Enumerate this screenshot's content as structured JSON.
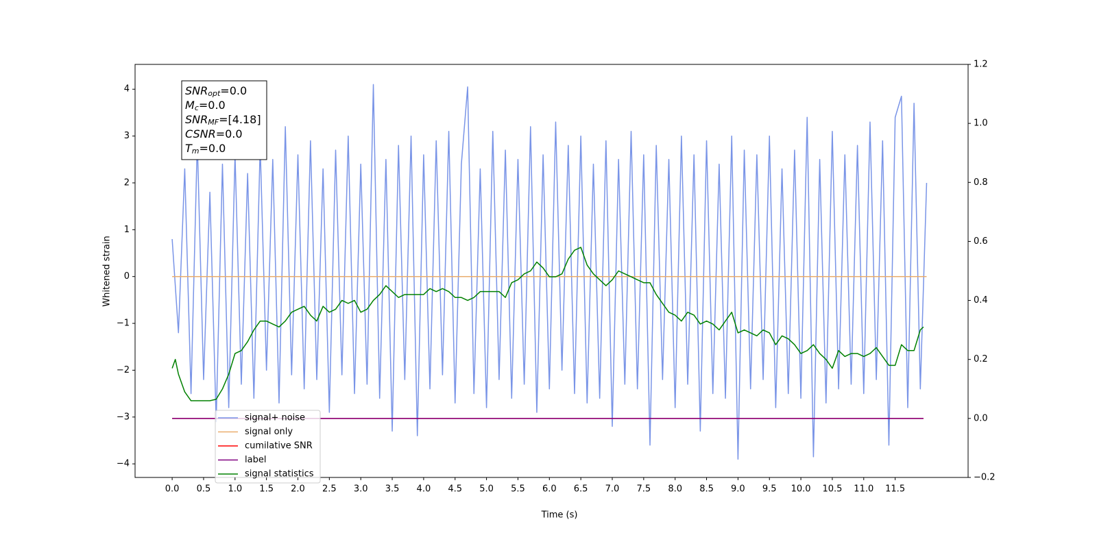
{
  "chart_data": {
    "type": "line",
    "xlabel": "Time (s)",
    "ylabel": "Whitened strain",
    "xlim": [
      -0.59,
      12.66
    ],
    "ylim": [
      -4.29,
      4.53
    ],
    "y2lim": [
      -0.2,
      1.2
    ],
    "xticks": [
      {
        "value": 0,
        "label": "0.0"
      },
      0.5,
      {
        "value": 1,
        "label": "1.0"
      },
      1.5,
      {
        "value": 2,
        "label": "2.0"
      },
      2.5,
      {
        "value": 3,
        "label": "3.0"
      },
      3.5,
      {
        "value": 4,
        "label": "4.0"
      },
      4.5,
      {
        "value": 5,
        "label": "5.0"
      },
      5.5,
      {
        "value": 6,
        "label": "6.0"
      },
      6.5,
      {
        "value": 7,
        "label": "7.0"
      },
      7.5,
      {
        "value": 8,
        "label": "8.0"
      },
      8.5,
      {
        "value": 9,
        "label": "9.0"
      },
      9.5,
      {
        "value": 10,
        "label": "10.0"
      },
      10.5,
      {
        "value": 11,
        "label": "11.0"
      },
      11.5
    ],
    "yticks": [
      {
        "value": -4,
        "label": "−4"
      },
      {
        "value": -3,
        "label": "−3"
      },
      {
        "value": -2,
        "label": "−2"
      },
      {
        "value": -1,
        "label": "−1"
      },
      0,
      1,
      2,
      3,
      4
    ],
    "y2ticks": [
      {
        "value": -0.2,
        "label": "−0.2"
      },
      {
        "value": 0,
        "label": "0.0"
      },
      0.2,
      0.4,
      0.6,
      0.8,
      {
        "value": 1,
        "label": "1.0"
      },
      1.2
    ],
    "grid": false,
    "legend_loc": "lower left",
    "annotation": [
      {
        "base": "SNR",
        "sub": "opt",
        "rest": "=0.0"
      },
      {
        "base": "M",
        "sub": "c",
        "rest": "=0.0"
      },
      {
        "base": "SNR",
        "sub": "MF",
        "rest": "=[4.18]"
      },
      {
        "base": "CSNR",
        "sub": null,
        "rest": "=0.0"
      },
      {
        "base": "T",
        "sub": "m",
        "rest": "=0.0"
      }
    ],
    "series": [
      {
        "name": "signal+ noise",
        "color": "#7994e7",
        "x": [
          0,
          0.1,
          0.2,
          0.3,
          0.4,
          0.5,
          0.6,
          0.7,
          0.8,
          0.9,
          1,
          1.1,
          1.2,
          1.3,
          1.4,
          1.5,
          1.6,
          1.7,
          1.8,
          1.9,
          2,
          2.1,
          2.2,
          2.3,
          2.4,
          2.5,
          2.6,
          2.7,
          2.8,
          2.9,
          3,
          3.1,
          3.2,
          3.3,
          3.4,
          3.5,
          3.6,
          3.7,
          3.8,
          3.9,
          4,
          4.1,
          4.2,
          4.3,
          4.4,
          4.5,
          4.6,
          4.7,
          4.8,
          4.9,
          5,
          5.1,
          5.2,
          5.3,
          5.4,
          5.5,
          5.6,
          5.7,
          5.8,
          5.9,
          6,
          6.1,
          6.2,
          6.3,
          6.4,
          6.5,
          6.6,
          6.7,
          6.8,
          6.9,
          7,
          7.1,
          7.2,
          7.3,
          7.4,
          7.5,
          7.6,
          7.7,
          7.8,
          7.9,
          8,
          8.1,
          8.2,
          8.3,
          8.4,
          8.5,
          8.6,
          8.7,
          8.8,
          8.9,
          9,
          9.1,
          9.2,
          9.3,
          9.4,
          9.5,
          9.6,
          9.7,
          9.8,
          9.9,
          10,
          10.1,
          10.2,
          10.3,
          10.4,
          10.5,
          10.6,
          10.7,
          10.8,
          10.9,
          11,
          11.1,
          11.2,
          11.3,
          11.4,
          11.5,
          11.6,
          11.7,
          11.8,
          11.9,
          12
        ],
        "values": [
          0.8,
          -1.2,
          2.3,
          -2.5,
          2.9,
          -2.2,
          1.8,
          -3.1,
          2.4,
          -2.8,
          2.6,
          -2.3,
          2.2,
          -2.6,
          2.8,
          -2.0,
          2.5,
          -2.7,
          3.2,
          -2.1,
          2.6,
          -2.4,
          2.9,
          -2.2,
          2.3,
          -2.9,
          2.7,
          -2.1,
          3.0,
          -2.5,
          2.4,
          -2.3,
          4.1,
          -2.6,
          2.5,
          -3.3,
          2.8,
          -2.2,
          3.0,
          -3.4,
          2.6,
          -2.4,
          2.9,
          -2.1,
          3.1,
          -2.7,
          2.4,
          4.05,
          -2.5,
          2.3,
          -2.8,
          3.1,
          -2.2,
          2.7,
          -2.6,
          2.5,
          -2.3,
          3.2,
          -2.9,
          2.6,
          -2.4,
          3.3,
          -2.0,
          2.8,
          -2.5,
          3.0,
          -2.7,
          2.4,
          -2.6,
          2.9,
          -3.2,
          2.5,
          -2.3,
          3.1,
          -2.4,
          2.6,
          -3.6,
          2.8,
          -2.2,
          2.5,
          -2.8,
          3.0,
          -2.3,
          2.6,
          -3.3,
          2.9,
          -2.5,
          2.4,
          -2.6,
          3.0,
          -3.9,
          2.7,
          -2.4,
          2.6,
          -2.2,
          3.0,
          -2.8,
          2.3,
          -2.5,
          2.7,
          -2.6,
          3.4,
          -3.85,
          2.5,
          -2.7,
          3.1,
          -2.4,
          2.6,
          -2.3,
          2.8,
          -2.5,
          3.3,
          -2.2,
          2.9,
          -3.6,
          3.4,
          3.85,
          -2.8,
          3.7,
          -2.4,
          2.0
        ]
      },
      {
        "name": "signal only",
        "color": "#e9ad6d",
        "x": [
          0,
          12
        ],
        "values": [
          0,
          0
        ]
      },
      {
        "name": "cumilative SNR",
        "color": "#ff0000",
        "axis": "y2",
        "x": [
          0,
          11.95
        ],
        "values": [
          0,
          0
        ]
      },
      {
        "name": "label",
        "color": "#800080",
        "axis": "y2",
        "x": [
          0,
          11.95
        ],
        "values": [
          0,
          0
        ]
      },
      {
        "name": "signal statistics",
        "color": "#008000",
        "axis": "y2",
        "x": [
          0,
          0.05,
          0.1,
          0.2,
          0.3,
          0.4,
          0.5,
          0.6,
          0.7,
          0.8,
          0.9,
          1,
          1.1,
          1.2,
          1.3,
          1.4,
          1.5,
          1.6,
          1.7,
          1.8,
          1.9,
          2,
          2.1,
          2.2,
          2.3,
          2.4,
          2.5,
          2.6,
          2.7,
          2.8,
          2.9,
          3,
          3.1,
          3.2,
          3.3,
          3.4,
          3.5,
          3.6,
          3.7,
          3.8,
          3.9,
          4,
          4.1,
          4.2,
          4.3,
          4.4,
          4.5,
          4.6,
          4.7,
          4.8,
          4.9,
          5,
          5.1,
          5.2,
          5.3,
          5.4,
          5.5,
          5.6,
          5.7,
          5.8,
          5.9,
          6,
          6.1,
          6.2,
          6.3,
          6.4,
          6.5,
          6.6,
          6.7,
          6.8,
          6.9,
          7,
          7.1,
          7.2,
          7.3,
          7.4,
          7.5,
          7.6,
          7.7,
          7.8,
          7.9,
          8,
          8.1,
          8.2,
          8.3,
          8.4,
          8.5,
          8.6,
          8.7,
          8.8,
          8.9,
          9,
          9.1,
          9.2,
          9.3,
          9.4,
          9.5,
          9.6,
          9.7,
          9.8,
          9.9,
          10,
          10.1,
          10.2,
          10.3,
          10.4,
          10.5,
          10.6,
          10.7,
          10.8,
          10.9,
          11,
          11.1,
          11.2,
          11.3,
          11.4,
          11.5,
          11.6,
          11.7,
          11.8,
          11.9,
          11.95
        ],
        "values": [
          0.17,
          0.2,
          0.15,
          0.09,
          0.06,
          0.06,
          0.06,
          0.06,
          0.065,
          0.1,
          0.15,
          0.22,
          0.23,
          0.26,
          0.3,
          0.33,
          0.33,
          0.32,
          0.31,
          0.33,
          0.36,
          0.37,
          0.38,
          0.35,
          0.33,
          0.38,
          0.36,
          0.37,
          0.4,
          0.39,
          0.4,
          0.36,
          0.37,
          0.4,
          0.42,
          0.45,
          0.43,
          0.41,
          0.42,
          0.42,
          0.42,
          0.42,
          0.44,
          0.43,
          0.44,
          0.43,
          0.41,
          0.41,
          0.4,
          0.41,
          0.43,
          0.43,
          0.43,
          0.43,
          0.41,
          0.46,
          0.47,
          0.49,
          0.5,
          0.53,
          0.51,
          0.48,
          0.48,
          0.49,
          0.54,
          0.57,
          0.58,
          0.52,
          0.49,
          0.47,
          0.45,
          0.47,
          0.5,
          0.49,
          0.48,
          0.47,
          0.46,
          0.46,
          0.42,
          0.39,
          0.36,
          0.35,
          0.33,
          0.36,
          0.35,
          0.32,
          0.33,
          0.32,
          0.3,
          0.33,
          0.36,
          0.29,
          0.3,
          0.29,
          0.28,
          0.3,
          0.29,
          0.25,
          0.28,
          0.27,
          0.25,
          0.22,
          0.23,
          0.25,
          0.22,
          0.2,
          0.17,
          0.23,
          0.21,
          0.22,
          0.22,
          0.21,
          0.22,
          0.24,
          0.21,
          0.18,
          0.18,
          0.25,
          0.23,
          0.23,
          0.3,
          0.31
        ]
      }
    ]
  }
}
